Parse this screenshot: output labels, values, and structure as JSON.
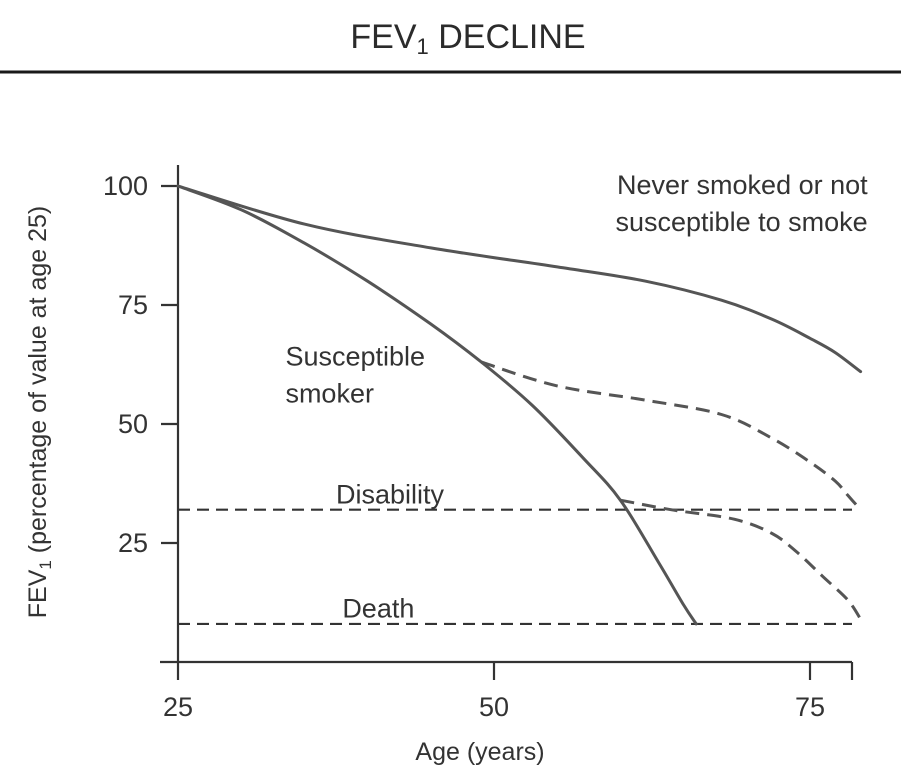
{
  "chart_data": {
    "type": "line",
    "title": "FEV",
    "title_subscript": "1",
    "title_rest": " DECLINE",
    "ylabel": "FEV",
    "ylabel_subscript": "1",
    "ylabel_rest": " (percentage of value at age 25)",
    "xlabel": "Age (years)",
    "xlim": [
      25,
      82
    ],
    "ylim": [
      0,
      105
    ],
    "xticks": [
      25,
      50,
      75
    ],
    "yticks": [
      100,
      75,
      50,
      25
    ],
    "grid": false,
    "series": [
      {
        "key": "never",
        "style": "solid",
        "points": [
          [
            25,
            100
          ],
          [
            35,
            92
          ],
          [
            45,
            87
          ],
          [
            55,
            83
          ],
          [
            62,
            80
          ],
          [
            68,
            76
          ],
          [
            72,
            72
          ],
          [
            75,
            68
          ],
          [
            77,
            65
          ],
          [
            79,
            61
          ]
        ]
      },
      {
        "key": "susceptible",
        "style": "solid",
        "points": [
          [
            25,
            100
          ],
          [
            30,
            95
          ],
          [
            35,
            88
          ],
          [
            40,
            80
          ],
          [
            45,
            71
          ],
          [
            49,
            63
          ],
          [
            53,
            54
          ],
          [
            57,
            43
          ],
          [
            60,
            34
          ],
          [
            63,
            21
          ],
          [
            65,
            12
          ],
          [
            66,
            8
          ]
        ]
      },
      {
        "key": "quit-50",
        "style": "dashed",
        "points": [
          [
            49,
            63
          ],
          [
            55,
            58
          ],
          [
            62,
            55
          ],
          [
            68,
            52
          ],
          [
            72,
            47
          ],
          [
            75,
            42
          ],
          [
            77,
            38
          ],
          [
            78,
            35
          ],
          [
            79,
            32
          ]
        ]
      },
      {
        "key": "quit-60",
        "style": "dashed",
        "points": [
          [
            60,
            34
          ],
          [
            64,
            32
          ],
          [
            69,
            30
          ],
          [
            72,
            27
          ],
          [
            74,
            23
          ],
          [
            76,
            18
          ],
          [
            78,
            13
          ],
          [
            79,
            9
          ]
        ]
      }
    ],
    "reference_lines": [
      {
        "key": "disability",
        "y": 32,
        "label": "Disability",
        "label_x": 37.5,
        "label_y": 35
      },
      {
        "key": "death",
        "y": 8,
        "label": "Death",
        "label_x": 38,
        "label_y": 11
      }
    ],
    "annotations": [
      {
        "key": "never-label",
        "lines": [
          "Never smoked or not",
          "susceptible to smoke"
        ],
        "x": 76,
        "y": 100
      },
      {
        "key": "susceptible-label",
        "lines": [
          "Susceptible",
          "smoker"
        ],
        "x": 33.5,
        "y": 64
      }
    ]
  }
}
